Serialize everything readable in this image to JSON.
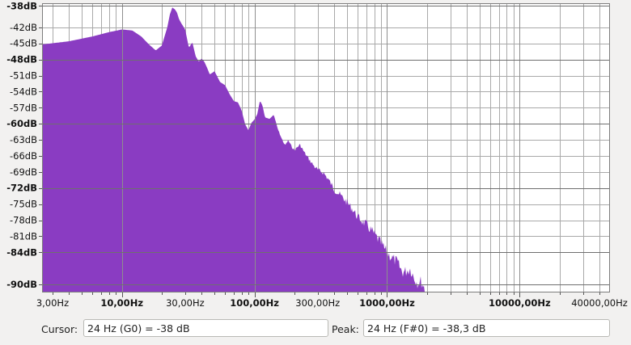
{
  "colors": {
    "spectrum_fill": "#8a3cc2",
    "plot_background": "#ffffff",
    "grid_line": "#a9a9a9",
    "window_background": "#f2f1f0"
  },
  "chart_data": {
    "type": "area",
    "title": "",
    "xlabel": "",
    "ylabel": "",
    "x_scale": "log",
    "grid": true,
    "xlim": [
      2.5,
      48000
    ],
    "ylim": [
      -91.5,
      -37.5
    ],
    "y_ticks": [
      {
        "value": -38,
        "label": "-38dB",
        "major": true
      },
      {
        "value": -42,
        "label": "-42dB",
        "major": false
      },
      {
        "value": -45,
        "label": "-45dB",
        "major": false
      },
      {
        "value": -48,
        "label": "-48dB",
        "major": true
      },
      {
        "value": -51,
        "label": "-51dB",
        "major": false
      },
      {
        "value": -54,
        "label": "-54dB",
        "major": false
      },
      {
        "value": -57,
        "label": "-57dB",
        "major": false
      },
      {
        "value": -60,
        "label": "-60dB",
        "major": true
      },
      {
        "value": -63,
        "label": "-63dB",
        "major": false
      },
      {
        "value": -66,
        "label": "-66dB",
        "major": false
      },
      {
        "value": -69,
        "label": "-69dB",
        "major": false
      },
      {
        "value": -72,
        "label": "-72dB",
        "major": true
      },
      {
        "value": -75,
        "label": "-75dB",
        "major": false
      },
      {
        "value": -78,
        "label": "-78dB",
        "major": false
      },
      {
        "value": -81,
        "label": "-81dB",
        "major": false
      },
      {
        "value": -84,
        "label": "-84dB",
        "major": true
      },
      {
        "value": -90,
        "label": "-90dB",
        "major": true
      }
    ],
    "x_ticks": [
      {
        "value": 3,
        "label": "3,00Hz",
        "major": false
      },
      {
        "value": 10,
        "label": "10,00Hz",
        "major": true
      },
      {
        "value": 30,
        "label": "30,00Hz",
        "major": false
      },
      {
        "value": 100,
        "label": "100,00Hz",
        "major": true
      },
      {
        "value": 300,
        "label": "300,00Hz",
        "major": false
      },
      {
        "value": 1000,
        "label": "1000,00Hz",
        "major": true
      },
      {
        "value": 10000,
        "label": "10000,00Hz",
        "major": true
      },
      {
        "value": 40000,
        "label": "40000,00Hz",
        "major": false
      }
    ],
    "x": [
      2.5,
      4,
      6,
      8,
      10,
      12,
      14,
      16,
      18,
      20,
      22,
      23,
      24,
      25,
      26,
      27,
      28,
      30,
      32,
      34,
      36,
      38,
      40,
      42,
      44,
      46,
      50,
      55,
      60,
      65,
      70,
      75,
      80,
      85,
      90,
      95,
      100,
      105,
      110,
      115,
      120,
      130,
      140,
      150,
      160,
      170,
      180,
      190,
      200,
      220,
      240,
      260,
      280,
      300,
      330,
      360,
      400,
      450,
      500,
      550,
      600,
      700,
      800,
      900,
      1000,
      1100,
      1200,
      1300,
      1400,
      1500,
      1600,
      1700,
      1800,
      1900,
      2000,
      2100
    ],
    "y": [
      -45.2,
      -44.6,
      -43.7,
      -42.9,
      -42.4,
      -42.6,
      -43.7,
      -45.2,
      -46.3,
      -45.4,
      -42.0,
      -39.6,
      -38.3,
      -38.6,
      -39.2,
      -40.5,
      -41.2,
      -42.4,
      -45.8,
      -44.8,
      -47.4,
      -48.4,
      -47.8,
      -48.5,
      -49.6,
      -50.8,
      -50.2,
      -52.2,
      -52.8,
      -54.5,
      -55.8,
      -56.0,
      -57.5,
      -60.1,
      -61.2,
      -59.8,
      -59.2,
      -58.2,
      -55.7,
      -56.6,
      -58.8,
      -59.1,
      -58.3,
      -60.9,
      -62.6,
      -63.9,
      -62.9,
      -64.0,
      -64.7,
      -63.6,
      -65.2,
      -66.4,
      -67.4,
      -68.2,
      -68.6,
      -69.8,
      -71.7,
      -72.8,
      -74.0,
      -75.2,
      -76.6,
      -78.0,
      -79.6,
      -81.3,
      -83.0,
      -84.0,
      -84.8,
      -86.6,
      -86.4,
      -86.0,
      -87.7,
      -88.6,
      -88.3,
      -89.4,
      -90.7,
      -91.5
    ]
  },
  "status_bar": {
    "cursor_label": "Cursor:",
    "cursor_value": "24 Hz (G0) = -38 dB",
    "peak_label": "Peak:",
    "peak_value": "24 Hz (F#0) = -38,3 dB"
  }
}
